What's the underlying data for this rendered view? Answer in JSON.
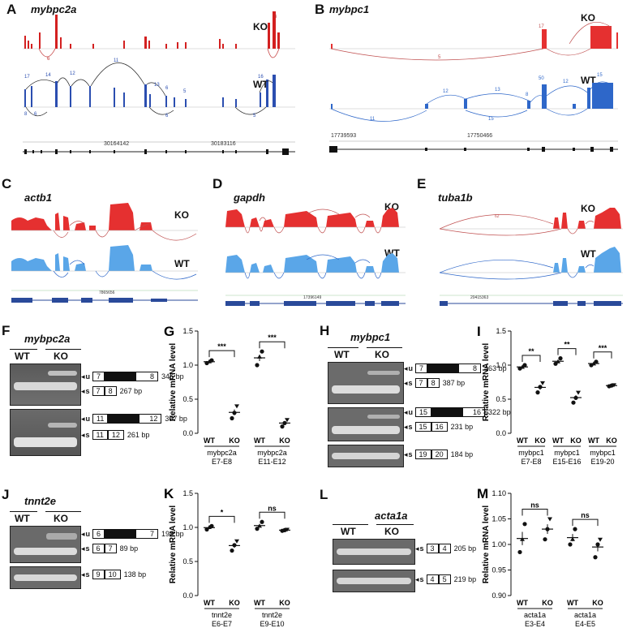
{
  "panels": {
    "A": {
      "label": "A",
      "gene": "mybpc2a",
      "ko": "KO",
      "wt": "WT",
      "coord1": "30164142",
      "coord2": "30183116"
    },
    "B": {
      "label": "B",
      "gene": "mybpc1",
      "ko": "KO",
      "wt": "WT",
      "coord1": "17739593",
      "coord2": "17750466"
    },
    "C": {
      "label": "C",
      "gene": "actb1",
      "ko": "KO",
      "wt": "WT",
      "coord": "7865656"
    },
    "D": {
      "label": "D",
      "gene": "gapdh",
      "ko": "KO",
      "wt": "WT",
      "coord": "17396149"
    },
    "E": {
      "label": "E",
      "gene": "tuba1b",
      "ko": "KO",
      "wt": "WT",
      "coord": "20415363"
    },
    "F": {
      "label": "F",
      "gene": "mybpc2a",
      "wt": "WT",
      "ko": "KO",
      "bands": [
        {
          "type": "u",
          "exons": [
            "7",
            "8"
          ],
          "size": "346 bp"
        },
        {
          "type": "s",
          "exons": [
            "7",
            "8"
          ],
          "size": "267 bp"
        },
        {
          "type": "u",
          "exons": [
            "11",
            "12"
          ],
          "size": "377 bp"
        },
        {
          "type": "s",
          "exons": [
            "11",
            "12"
          ],
          "size": "261 bp"
        }
      ]
    },
    "G": {
      "label": "G"
    },
    "H": {
      "label": "H",
      "gene": "mybpc1",
      "wt": "WT",
      "ko": "KO",
      "bands": [
        {
          "type": "u",
          "exons": [
            "7",
            "8"
          ],
          "size": "463 bp"
        },
        {
          "type": "s",
          "exons": [
            "7",
            "8"
          ],
          "size": "387 bp"
        },
        {
          "type": "u",
          "exons": [
            "15",
            "16"
          ],
          "size": "322 bp"
        },
        {
          "type": "s",
          "exons": [
            "15",
            "16"
          ],
          "size": "231 bp"
        },
        {
          "type": "s",
          "exons": [
            "19",
            "20"
          ],
          "size": "184 bp"
        }
      ]
    },
    "I": {
      "label": "I"
    },
    "J": {
      "label": "J",
      "gene": "tnnt2e",
      "wt": "WT",
      "ko": "KO",
      "bands": [
        {
          "type": "u",
          "exons": [
            "6",
            "7"
          ],
          "size": "198 bp"
        },
        {
          "type": "s",
          "exons": [
            "6",
            "7"
          ],
          "size": "89 bp"
        },
        {
          "type": "s",
          "exons": [
            "9",
            "10"
          ],
          "size": "138 bp"
        }
      ]
    },
    "K": {
      "label": "K"
    },
    "L": {
      "label": "L",
      "gene": "acta1a",
      "wt": "WT",
      "ko": "KO",
      "bands": [
        {
          "type": "s",
          "exons": [
            "3",
            "4"
          ],
          "size": "205 bp"
        },
        {
          "type": "s",
          "exons": [
            "4",
            "5"
          ],
          "size": "219 bp"
        }
      ]
    },
    "M": {
      "label": "M"
    }
  },
  "chart_data": [
    {
      "panel": "G",
      "type": "scatter",
      "ylabel": "Relative mRNA level",
      "ylim": [
        0,
        1.5
      ],
      "yticks": [
        "0.0",
        "0.5",
        "1.0",
        "1.5"
      ],
      "groups": [
        {
          "xlabel": "mybpc2a",
          "sub": "E7-E8",
          "sig": "***",
          "wt": [
            1.03,
            1.05,
            1.07
          ],
          "ko": [
            0.22,
            0.3,
            0.4
          ]
        },
        {
          "xlabel": "mybpc2a",
          "sub": "E11-E12",
          "sig": "***",
          "wt": [
            1.0,
            1.12,
            1.2
          ],
          "ko": [
            0.1,
            0.15,
            0.2
          ]
        }
      ]
    },
    {
      "panel": "I",
      "type": "scatter",
      "ylabel": "Relative mRNA level",
      "ylim": [
        0,
        1.5
      ],
      "yticks": [
        "0.0",
        "0.5",
        "1.0",
        "1.5"
      ],
      "groups": [
        {
          "xlabel": "mybpc1",
          "sub": "E7-E8",
          "sig": "**",
          "wt": [
            0.95,
            0.97,
            1.0
          ],
          "ko": [
            0.6,
            0.68,
            0.74
          ]
        },
        {
          "xlabel": "mybpc1",
          "sub": "E15-E16",
          "sig": "**",
          "wt": [
            1.02,
            1.05,
            1.1
          ],
          "ko": [
            0.45,
            0.52,
            0.6
          ]
        },
        {
          "xlabel": "mybpc1",
          "sub": "E19-20",
          "sig": "***",
          "wt": [
            1.0,
            1.02,
            1.05
          ],
          "ko": [
            0.69,
            0.7,
            0.71
          ]
        }
      ]
    },
    {
      "panel": "K",
      "type": "scatter",
      "ylabel": "Relative mRNA level",
      "ylim": [
        0,
        1.5
      ],
      "yticks": [
        "0.0",
        "0.5",
        "1.0",
        "1.5"
      ],
      "groups": [
        {
          "xlabel": "tnnt2e",
          "sub": "E6-E7",
          "sig": "*",
          "wt": [
            0.97,
            1.0,
            1.02
          ],
          "ko": [
            0.66,
            0.74,
            0.8
          ]
        },
        {
          "xlabel": "tnnt2e",
          "sub": "E9-E10",
          "sig": "ns",
          "wt": [
            0.98,
            1.02,
            1.08
          ],
          "ko": [
            0.95,
            0.96,
            0.97
          ]
        }
      ]
    },
    {
      "panel": "M",
      "type": "scatter",
      "ylabel": "Relative mRNA level",
      "ylim": [
        0.9,
        1.1
      ],
      "yticks": [
        "0.90",
        "0.95",
        "1.00",
        "1.05",
        "1.10"
      ],
      "groups": [
        {
          "xlabel": "acta1a",
          "sub": "E3-E4",
          "sig": "ns",
          "wt": [
            0.985,
            1.01,
            1.04
          ],
          "ko": [
            1.01,
            1.03,
            1.05
          ]
        },
        {
          "xlabel": "acta1a",
          "sub": "E4-E5",
          "sig": "ns",
          "wt": [
            1.0,
            1.01,
            1.03
          ],
          "ko": [
            0.975,
            1.0,
            1.01
          ]
        }
      ]
    }
  ],
  "colors": {
    "ko": "#e02020",
    "wt": "#3060c8",
    "wtlight": "#4a90d9",
    "gel": "#7a7a7a"
  }
}
